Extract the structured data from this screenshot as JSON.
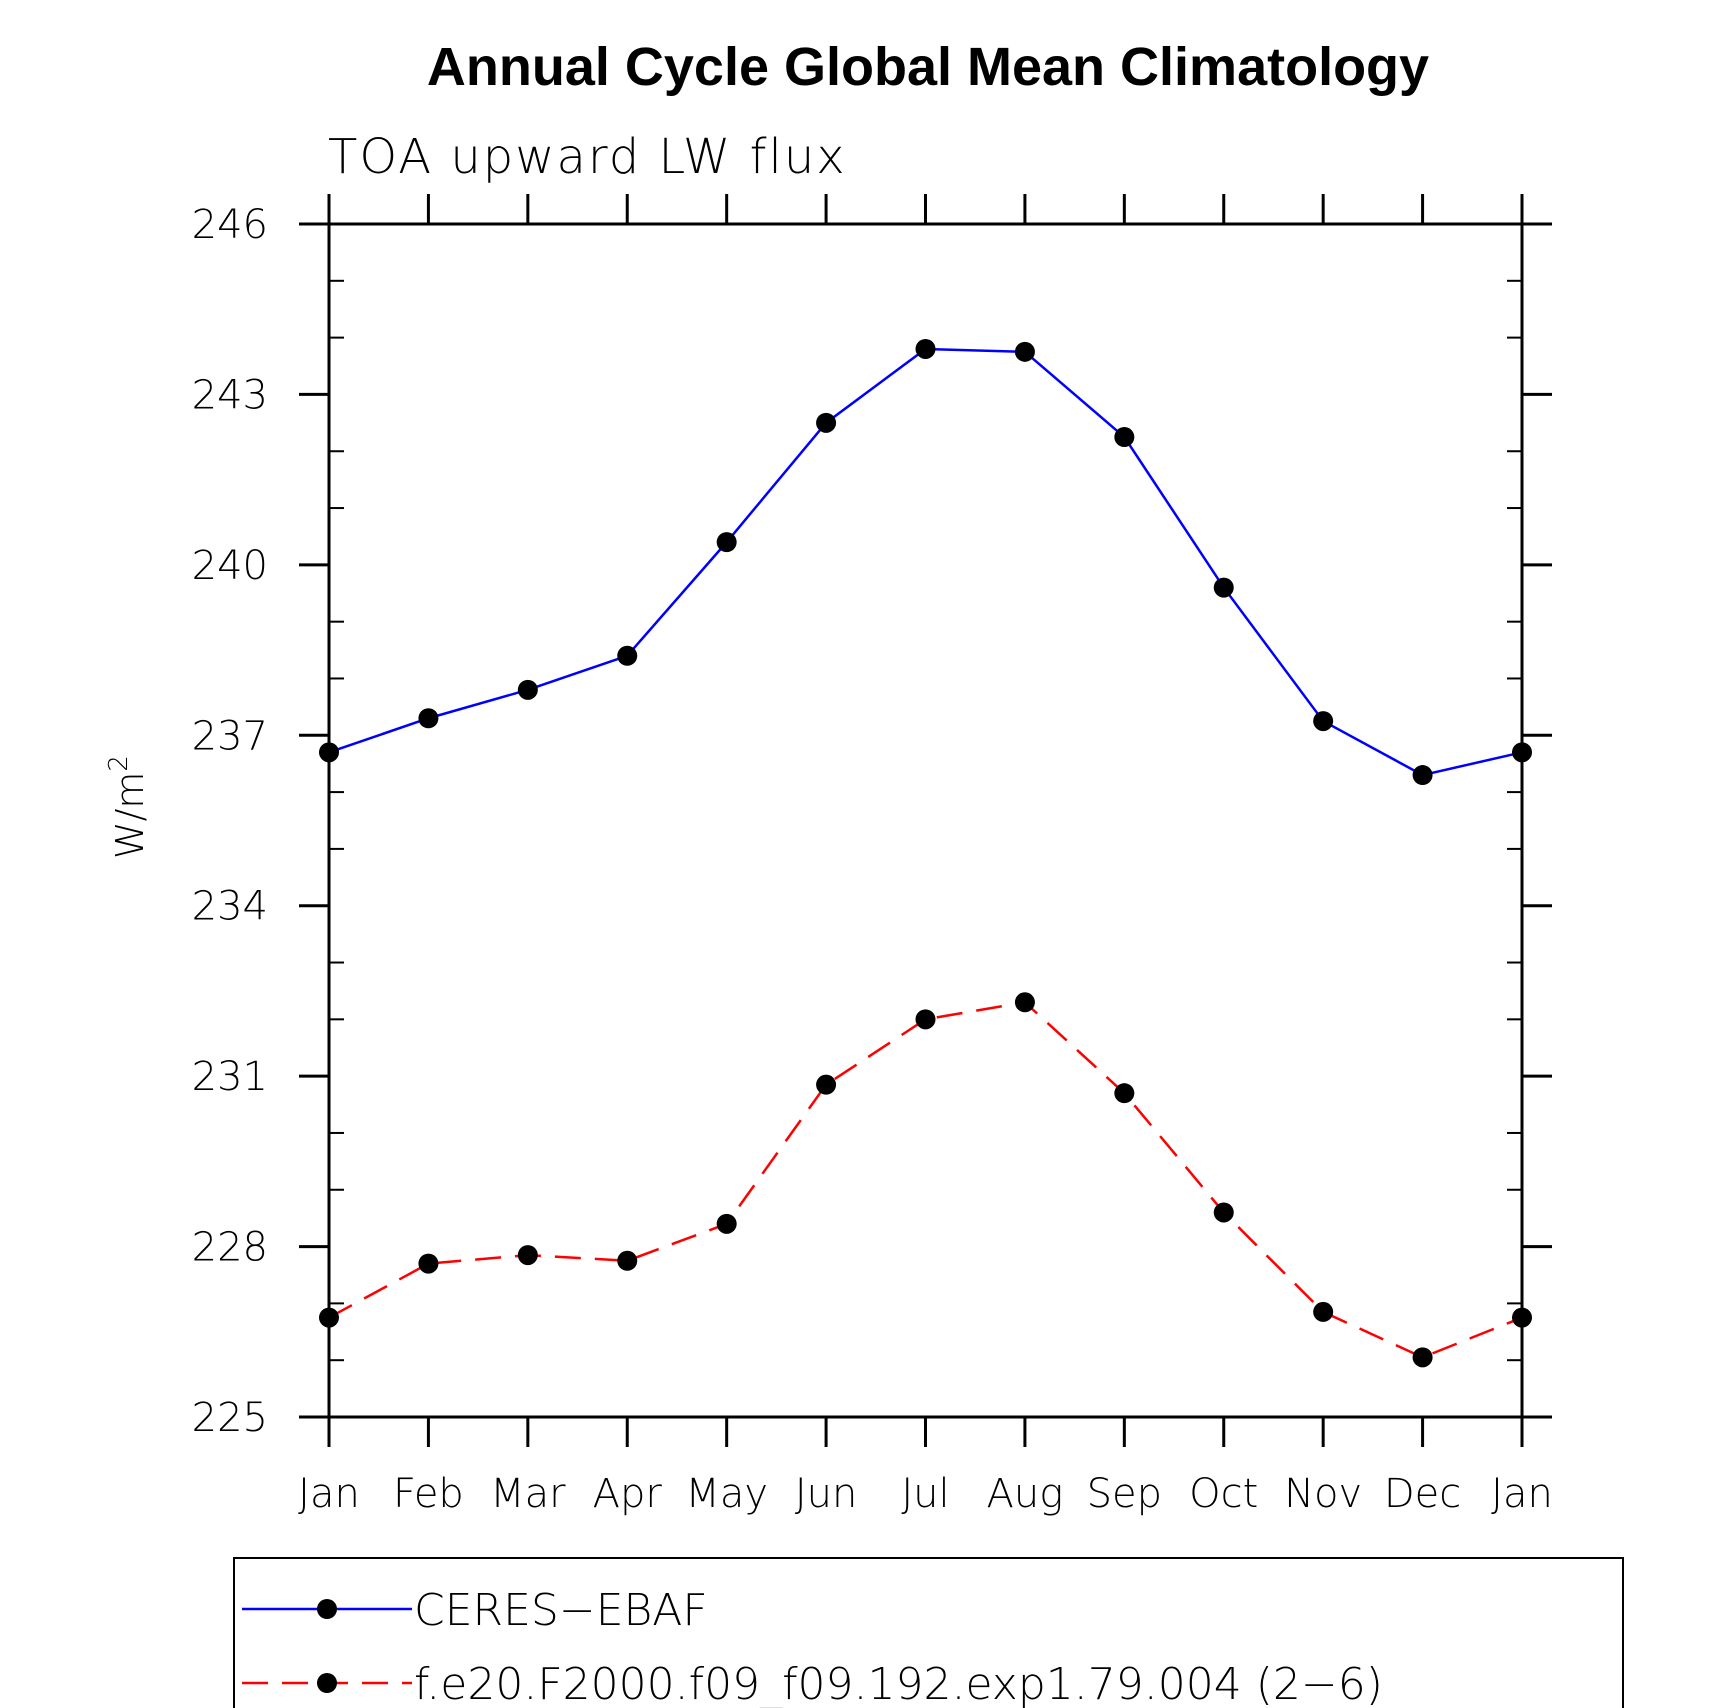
{
  "chart_data": {
    "type": "line",
    "title": "Annual Cycle Global Mean Climatology",
    "subtitle": "TOA upward LW flux",
    "xlabel": "",
    "ylabel": "W/m",
    "ylabel_superscript": "2",
    "categories": [
      "Jan",
      "Feb",
      "Mar",
      "Apr",
      "May",
      "Jun",
      "Jul",
      "Aug",
      "Sep",
      "Oct",
      "Nov",
      "Dec",
      "Jan"
    ],
    "ylim": [
      225,
      246
    ],
    "yticks": [
      225,
      228,
      231,
      234,
      237,
      240,
      243,
      246
    ],
    "grid": false,
    "legend_position": "bottom",
    "series": [
      {
        "name": "CERES−EBAF",
        "color": "#0000ff",
        "dash": "solid",
        "marker": "filled-circle",
        "values": [
          236.7,
          237.3,
          237.8,
          238.4,
          240.4,
          242.5,
          243.8,
          243.75,
          242.25,
          239.6,
          237.25,
          236.3,
          236.7
        ]
      },
      {
        "name": "f.e20.F2000.f09_f09.192.exp1.79.004 (2−6)",
        "color": "#ff0000",
        "dash": "dashed",
        "marker": "filled-circle",
        "values": [
          226.75,
          227.7,
          227.85,
          227.75,
          228.4,
          230.85,
          232.0,
          232.3,
          230.7,
          228.6,
          226.85,
          226.05,
          226.75
        ]
      }
    ]
  }
}
